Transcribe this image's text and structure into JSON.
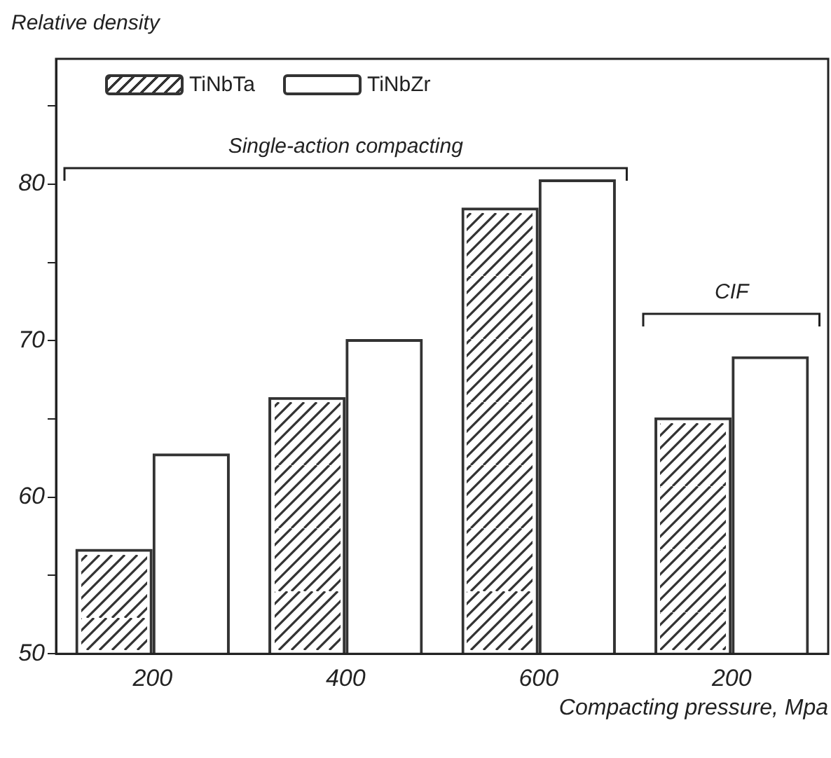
{
  "chart_data": {
    "type": "bar",
    "xlabel": "Compacting pressure, Mpa",
    "ylabel": "Relative density",
    "categories": [
      "200",
      "400",
      "600",
      "200"
    ],
    "series": [
      {
        "name": "TiNbTa",
        "color": "#333333",
        "values": [
          56.7,
          66.4,
          78.5,
          65.1
        ]
      },
      {
        "name": "TiNbZr",
        "color": "#333333",
        "values": [
          62.8,
          70.1,
          80.3,
          69.0
        ]
      }
    ],
    "ylim": [
      50,
      88
    ],
    "yticks": [
      50,
      {
        "value": 55,
        "label": null
      },
      60,
      {
        "value": 65,
        "label": null
      },
      70,
      {
        "value": 75,
        "label": null
      },
      80,
      {
        "value": 85,
        "label": null
      }
    ],
    "annotations": [
      "Single-action compacting",
      "CIF"
    ],
    "legend": "top left",
    "grid": false
  }
}
